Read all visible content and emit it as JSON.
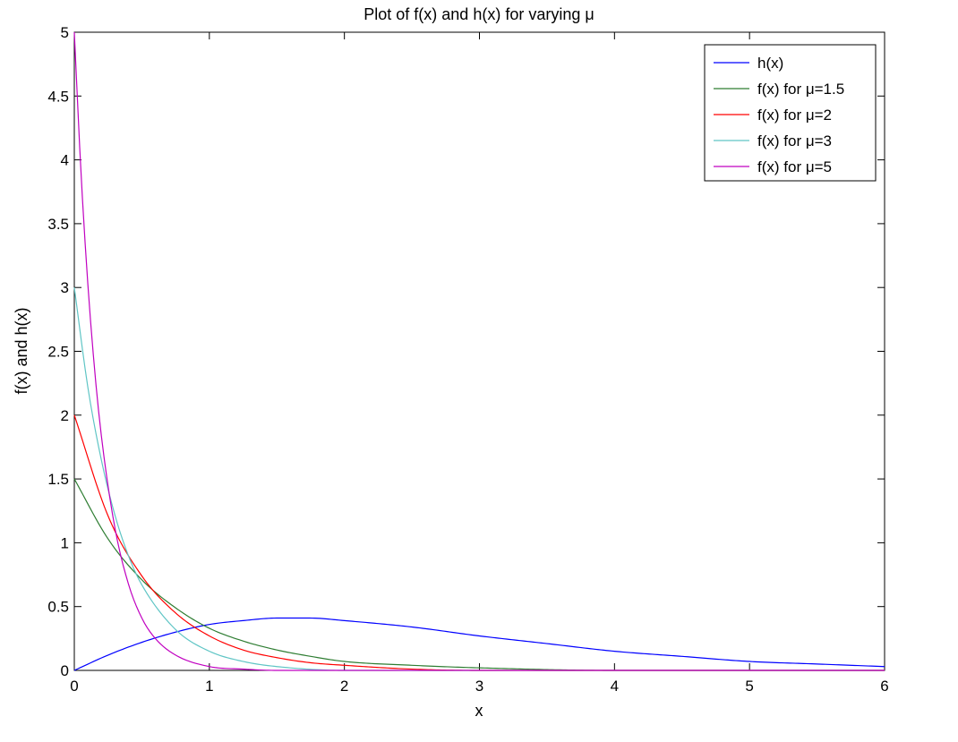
{
  "chart_data": {
    "type": "line",
    "title": "Plot of f(x) and h(x) for varying μ",
    "xlabel": "x",
    "ylabel": "f(x) and h(x)",
    "xlim": [
      0,
      6
    ],
    "ylim": [
      0,
      5
    ],
    "xticks": [
      "0",
      "1",
      "2",
      "3",
      "4",
      "5",
      "6"
    ],
    "yticks": [
      "0",
      "0.5",
      "1",
      "1.5",
      "2",
      "2.5",
      "3",
      "3.5",
      "4",
      "4.5",
      "5"
    ],
    "grid": false,
    "legend_position": "top-right",
    "series": [
      {
        "name": "h(x)",
        "color": "#0000ff",
        "x": [
          0,
          0.25,
          0.5,
          0.75,
          1,
          1.25,
          1.5,
          1.75,
          2,
          2.5,
          3,
          3.5,
          4,
          4.5,
          5,
          5.5,
          6
        ],
        "y": [
          0,
          0.12,
          0.22,
          0.3,
          0.36,
          0.39,
          0.41,
          0.41,
          0.39,
          0.34,
          0.27,
          0.21,
          0.15,
          0.11,
          0.07,
          0.05,
          0.03
        ]
      },
      {
        "name": "f(x) for μ=1.5",
        "color": "#2e7d32",
        "x": [
          0,
          0.25,
          0.5,
          0.75,
          1,
          1.25,
          1.5,
          1.75,
          2,
          2.5,
          3,
          4,
          5,
          6
        ],
        "y": [
          1.5,
          1.03,
          0.71,
          0.49,
          0.33,
          0.23,
          0.16,
          0.11,
          0.07,
          0.04,
          0.02,
          0.0,
          0.0,
          0.0
        ]
      },
      {
        "name": "f(x) for μ=2",
        "color": "#ff0000",
        "x": [
          0,
          0.25,
          0.5,
          0.75,
          1,
          1.25,
          1.5,
          1.75,
          2,
          2.5,
          3,
          4,
          5,
          6
        ],
        "y": [
          2.0,
          1.21,
          0.74,
          0.45,
          0.27,
          0.16,
          0.1,
          0.06,
          0.04,
          0.01,
          0.0,
          0.0,
          0.0,
          0.0
        ]
      },
      {
        "name": "f(x) for μ=3",
        "color": "#5fc5c5",
        "x": [
          0,
          0.1,
          0.2,
          0.3,
          0.4,
          0.5,
          0.75,
          1,
          1.25,
          1.5,
          2,
          3,
          4,
          5,
          6
        ],
        "y": [
          3.0,
          2.22,
          1.65,
          1.22,
          0.9,
          0.67,
          0.32,
          0.15,
          0.07,
          0.03,
          0.0,
          0.0,
          0.0,
          0.0,
          0.0
        ]
      },
      {
        "name": "f(x) for μ=5",
        "color": "#c000c0",
        "x": [
          0,
          0.05,
          0.1,
          0.15,
          0.2,
          0.3,
          0.4,
          0.5,
          0.6,
          0.75,
          1,
          1.25,
          1.5,
          2,
          3,
          4,
          5,
          6
        ],
        "y": [
          5.0,
          3.89,
          3.03,
          2.36,
          1.84,
          1.12,
          0.68,
          0.41,
          0.25,
          0.12,
          0.03,
          0.01,
          0.0,
          0.0,
          0.0,
          0.0,
          0.0,
          0.0
        ]
      }
    ]
  }
}
